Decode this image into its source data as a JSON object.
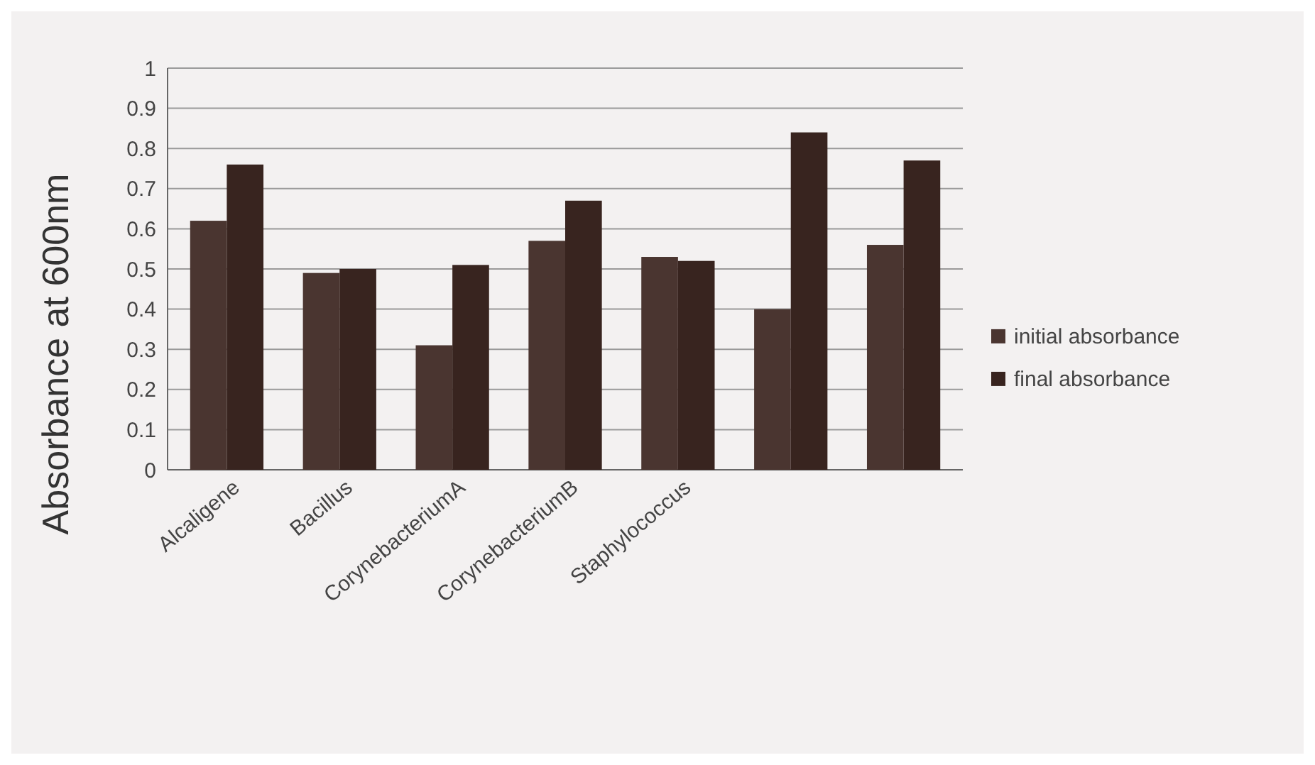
{
  "chart_data": {
    "type": "bar",
    "ylabel": "Absorbance at 600nm",
    "categories": [
      "Alcaligene",
      "Bacillus",
      "CorynebacteriumA",
      "CorynebacteriumB",
      "Staphylococcus",
      null,
      null
    ],
    "series": [
      {
        "name": "initial absorbance",
        "color": "#4a3530",
        "values": [
          0.62,
          0.49,
          0.31,
          0.57,
          0.53,
          0.4,
          0.56
        ]
      },
      {
        "name": "final absorbance",
        "color": "#38241f",
        "values": [
          0.76,
          0.5,
          0.51,
          0.67,
          0.52,
          0.84,
          0.77
        ]
      }
    ],
    "ylim": [
      0,
      1
    ],
    "yticks": [
      0,
      0.1,
      0.2,
      0.3,
      0.4,
      0.5,
      0.6,
      0.7,
      0.8,
      0.9,
      1
    ],
    "grid": "y",
    "legend": "right"
  }
}
